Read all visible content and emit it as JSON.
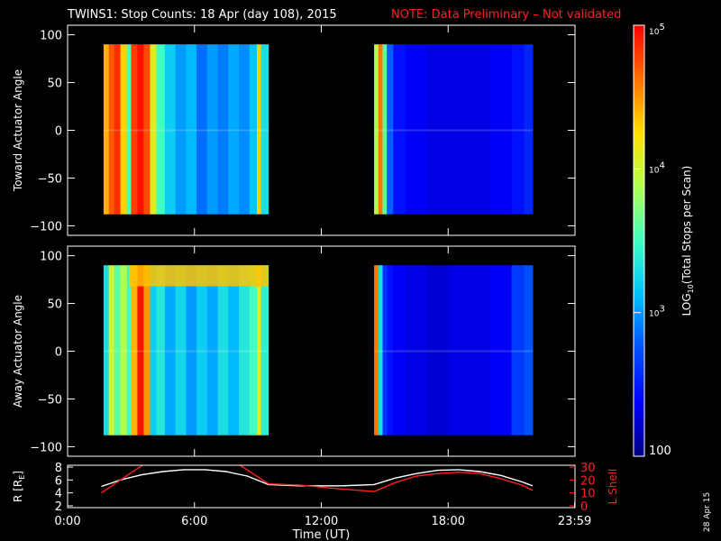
{
  "title": {
    "main": "TWINS1: Stop Counts: 18 Apr (day 108), 2015",
    "note": "NOTE: Data Preliminary – Not validated",
    "note_color": "#ff2020"
  },
  "side_date": "28 Apr 15",
  "colors": {
    "background": "#000000",
    "foreground": "#ffffff",
    "accent": "#ff2020"
  },
  "colorbar": {
    "label_parts": [
      "LOG",
      "10",
      "(Total Stops per Scan)"
    ],
    "range": [
      100,
      100000
    ],
    "scale": "log",
    "tick_labels": [
      {
        "base": "10",
        "exp": "5",
        "value": 100000
      },
      {
        "base": "10",
        "exp": "4",
        "value": 10000
      },
      {
        "base": "10",
        "exp": "3",
        "value": 1000
      },
      {
        "base": "100",
        "exp": "",
        "value": 100
      }
    ]
  },
  "chart_data": [
    {
      "type": "heatmap",
      "name": "toward",
      "ylabel": "Toward Actuator Angle",
      "ylim": [
        -110,
        110
      ],
      "xlim": [
        0,
        24
      ],
      "y_ticks": [
        100,
        50,
        0,
        -50,
        -100
      ],
      "y_tick_labels": [
        "100",
        "50",
        "0",
        "−50",
        "−100"
      ],
      "data_extent_y": [
        -88,
        90
      ],
      "segments": [
        {
          "t_start": 1.7,
          "t_end": 9.5,
          "columns": [
            {
              "t": 1.7,
              "log": 4.4
            },
            {
              "t": 1.95,
              "log": 4.7
            },
            {
              "t": 2.2,
              "log": 4.85
            },
            {
              "t": 2.5,
              "log": 4.3
            },
            {
              "t": 2.8,
              "log": 3.55
            },
            {
              "t": 3.0,
              "log": 4.8
            },
            {
              "t": 3.3,
              "log": 4.95
            },
            {
              "t": 3.6,
              "log": 4.75
            },
            {
              "t": 3.9,
              "log": 4.1
            },
            {
              "t": 4.2,
              "log": 3.5
            },
            {
              "t": 4.6,
              "log": 3.2
            },
            {
              "t": 5.1,
              "log": 3.0
            },
            {
              "t": 5.6,
              "log": 3.1
            },
            {
              "t": 6.1,
              "log": 2.85
            },
            {
              "t": 6.6,
              "log": 3.0
            },
            {
              "t": 7.1,
              "log": 2.9
            },
            {
              "t": 7.6,
              "log": 3.05
            },
            {
              "t": 8.1,
              "log": 2.95
            },
            {
              "t": 8.6,
              "log": 3.15
            },
            {
              "t": 8.95,
              "log": 4.3
            },
            {
              "t": 9.15,
              "log": 3.3
            }
          ]
        },
        {
          "t_start": 14.5,
          "t_end": 22.0,
          "columns": [
            {
              "t": 14.5,
              "log": 3.9
            },
            {
              "t": 14.7,
              "log": 4.6
            },
            {
              "t": 14.9,
              "log": 3.6
            },
            {
              "t": 15.1,
              "log": 2.8
            },
            {
              "t": 15.4,
              "log": 2.45
            },
            {
              "t": 16.0,
              "log": 2.35
            },
            {
              "t": 17.0,
              "log": 2.3
            },
            {
              "t": 18.0,
              "log": 2.3
            },
            {
              "t": 19.0,
              "log": 2.3
            },
            {
              "t": 20.0,
              "log": 2.35
            },
            {
              "t": 21.0,
              "log": 2.45
            },
            {
              "t": 21.6,
              "log": 2.55
            }
          ]
        }
      ]
    },
    {
      "type": "heatmap",
      "name": "away",
      "ylabel": "Away Actuator Angle",
      "ylim": [
        -110,
        110
      ],
      "xlim": [
        0,
        24
      ],
      "y_ticks": [
        100,
        50,
        0,
        -50,
        -100
      ],
      "y_tick_labels": [
        "100",
        "50",
        "0",
        "−50",
        "−100"
      ],
      "data_extent_y": [
        -88,
        90
      ],
      "segments": [
        {
          "t_start": 1.7,
          "t_end": 9.5,
          "columns": [
            {
              "t": 1.7,
              "log": 3.3
            },
            {
              "t": 1.95,
              "log": 4.0
            },
            {
              "t": 2.2,
              "log": 3.6
            },
            {
              "t": 2.5,
              "log": 3.9
            },
            {
              "t": 2.8,
              "log": 3.5
            },
            {
              "t": 3.0,
              "log": 4.4
            },
            {
              "t": 3.3,
              "log": 4.95
            },
            {
              "t": 3.6,
              "log": 4.5
            },
            {
              "t": 3.9,
              "log": 3.2
            },
            {
              "t": 4.2,
              "log": 3.35
            },
            {
              "t": 4.6,
              "log": 3.05
            },
            {
              "t": 5.1,
              "log": 3.25
            },
            {
              "t": 5.6,
              "log": 3.0
            },
            {
              "t": 6.1,
              "log": 3.2
            },
            {
              "t": 6.6,
              "log": 3.05
            },
            {
              "t": 7.1,
              "log": 3.3
            },
            {
              "t": 7.6,
              "log": 3.1
            },
            {
              "t": 8.1,
              "log": 3.35
            },
            {
              "t": 8.6,
              "log": 3.5
            },
            {
              "t": 8.95,
              "log": 4.2
            },
            {
              "t": 9.15,
              "log": 3.4
            }
          ],
          "band": {
            "y_range": [
              68,
              90
            ],
            "log": 4.35
          }
        },
        {
          "t_start": 14.5,
          "t_end": 22.0,
          "columns": [
            {
              "t": 14.5,
              "log": 4.6
            },
            {
              "t": 14.7,
              "log": 3.3
            },
            {
              "t": 14.9,
              "log": 2.6
            },
            {
              "t": 15.1,
              "log": 2.45
            },
            {
              "t": 15.4,
              "log": 2.35
            },
            {
              "t": 16.0,
              "log": 2.3
            },
            {
              "t": 17.0,
              "log": 2.25
            },
            {
              "t": 18.0,
              "log": 2.3
            },
            {
              "t": 19.0,
              "log": 2.3
            },
            {
              "t": 20.0,
              "log": 2.35
            },
            {
              "t": 21.0,
              "log": 2.65
            },
            {
              "t": 21.6,
              "log": 2.75
            }
          ]
        }
      ]
    },
    {
      "type": "line",
      "name": "orbit",
      "ylabel_left": "R [R",
      "ylabel_left_sub": "E",
      "ylabel_left_end": "]",
      "ylabel_right": "L Shell",
      "xlabel": "Time (UT)",
      "xlim": [
        0,
        24
      ],
      "x_ticks": [
        0,
        6,
        12,
        18,
        23.983
      ],
      "x_tick_labels": [
        "0:00",
        "6:00",
        "12:00",
        "18:00",
        "23:59"
      ],
      "ylim_left": [
        2,
        8
      ],
      "y_ticks_left": [
        2,
        4,
        6,
        8
      ],
      "ylim_right": [
        0,
        30
      ],
      "y_ticks_right": [
        0,
        10,
        20,
        30
      ],
      "series": [
        {
          "axis": "left",
          "color": "#ffffff",
          "x": [
            1.6,
            2.5,
            3.5,
            4.5,
            5.5,
            6.5,
            7.5,
            8.5,
            9.5,
            11,
            13,
            14.5,
            15.5,
            16.5,
            17.5,
            18.5,
            19.5,
            20.5,
            21.5,
            22.0
          ],
          "y": [
            5.0,
            6.0,
            6.8,
            7.3,
            7.6,
            7.6,
            7.3,
            6.6,
            5.3,
            5.1,
            5.1,
            5.3,
            6.3,
            7.0,
            7.5,
            7.6,
            7.3,
            6.7,
            5.7,
            5.1
          ]
        },
        {
          "axis": "right",
          "color": "#ff2020",
          "x": [
            1.6,
            2.5,
            3.6,
            3.7,
            8.05,
            8.1,
            9.5,
            11,
            13,
            14.5,
            15.5,
            16.5,
            17.5,
            18.5,
            19.5,
            20.5,
            21.5,
            22.0
          ],
          "y": [
            10,
            20,
            32,
            32,
            32,
            32,
            17,
            16,
            13,
            11,
            18,
            23,
            25,
            26,
            25,
            21,
            16,
            12
          ]
        }
      ]
    }
  ]
}
